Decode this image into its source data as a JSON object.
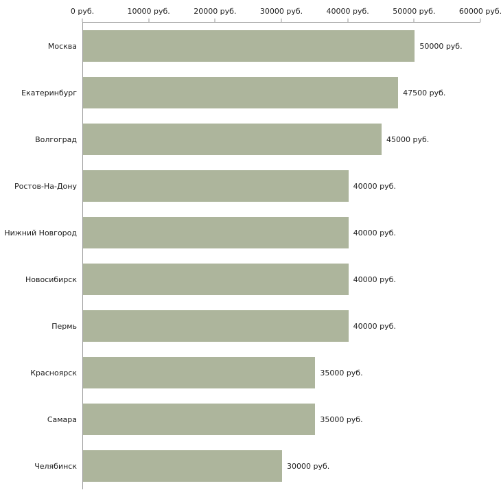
{
  "chart_data": {
    "type": "bar",
    "orientation": "horizontal",
    "title": "",
    "xlabel": "",
    "ylabel": "",
    "categories": [
      "Москва",
      "Екатеринбург",
      "Волгоград",
      "Ростов-На-Дону",
      "Нижний Новгород",
      "Новосибирск",
      "Пермь",
      "Красноярск",
      "Самара",
      "Челябинск"
    ],
    "values": [
      50000,
      47500,
      45000,
      40000,
      40000,
      40000,
      40000,
      35000,
      35000,
      30000
    ],
    "value_labels": [
      "50000 руб.",
      "47500 руб.",
      "45000 руб.",
      "40000 руб.",
      "40000 руб.",
      "40000 руб.",
      "40000 руб.",
      "35000 руб.",
      "35000 руб.",
      "30000 руб."
    ],
    "x_ticks": [
      "0 руб.",
      "10000 руб.",
      "20000 руб.",
      "30000 руб.",
      "40000 руб.",
      "50000 руб.",
      "60000 руб."
    ],
    "x_tick_values": [
      0,
      10000,
      20000,
      30000,
      40000,
      50000,
      60000
    ],
    "xlim": [
      0,
      60000
    ],
    "grid": false,
    "legend": false,
    "bar_color": "#adb59c",
    "axis_color": "#9a9a9a",
    "text_color": "#1a1a1a",
    "background_color": "#ffffff"
  }
}
